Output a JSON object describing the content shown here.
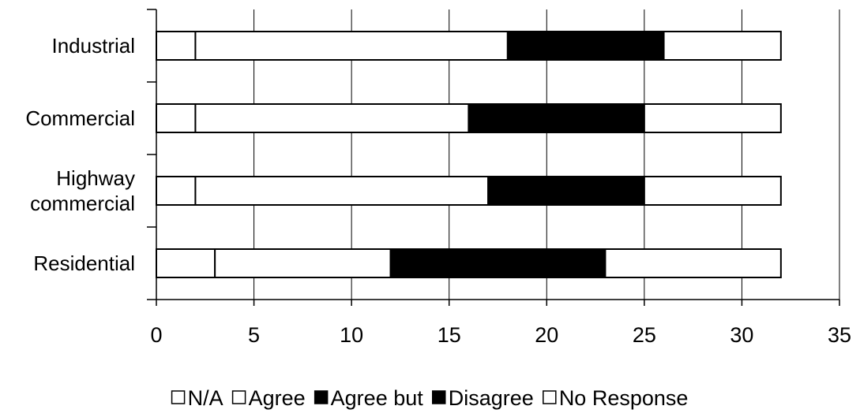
{
  "chart_data": {
    "type": "bar",
    "orientation": "horizontal",
    "stacked": true,
    "categories": [
      [
        "Industrial"
      ],
      [
        "Commercial"
      ],
      [
        "Highway",
        "commercial"
      ],
      [
        "Residential"
      ]
    ],
    "series": [
      {
        "name": "N/A",
        "color": "#ffffff",
        "values": [
          2,
          2,
          2,
          3
        ]
      },
      {
        "name": "Agree",
        "color": "#ffffff",
        "values": [
          16,
          14,
          15,
          9
        ]
      },
      {
        "name": "Agree but",
        "color": "#000000",
        "values": [
          8,
          9,
          8,
          11
        ]
      },
      {
        "name": "Disagree",
        "color": "#000000",
        "values": [
          0,
          0,
          0,
          0
        ]
      },
      {
        "name": "No Response",
        "color": "#ffffff",
        "values": [
          6,
          7,
          7,
          9
        ]
      }
    ],
    "xlim": [
      0,
      35
    ],
    "x_ticks": [
      0,
      5,
      10,
      15,
      20,
      25,
      30,
      35
    ],
    "grid": "vertical",
    "legend_position": "bottom",
    "title": "",
    "xlabel": "",
    "ylabel": ""
  }
}
